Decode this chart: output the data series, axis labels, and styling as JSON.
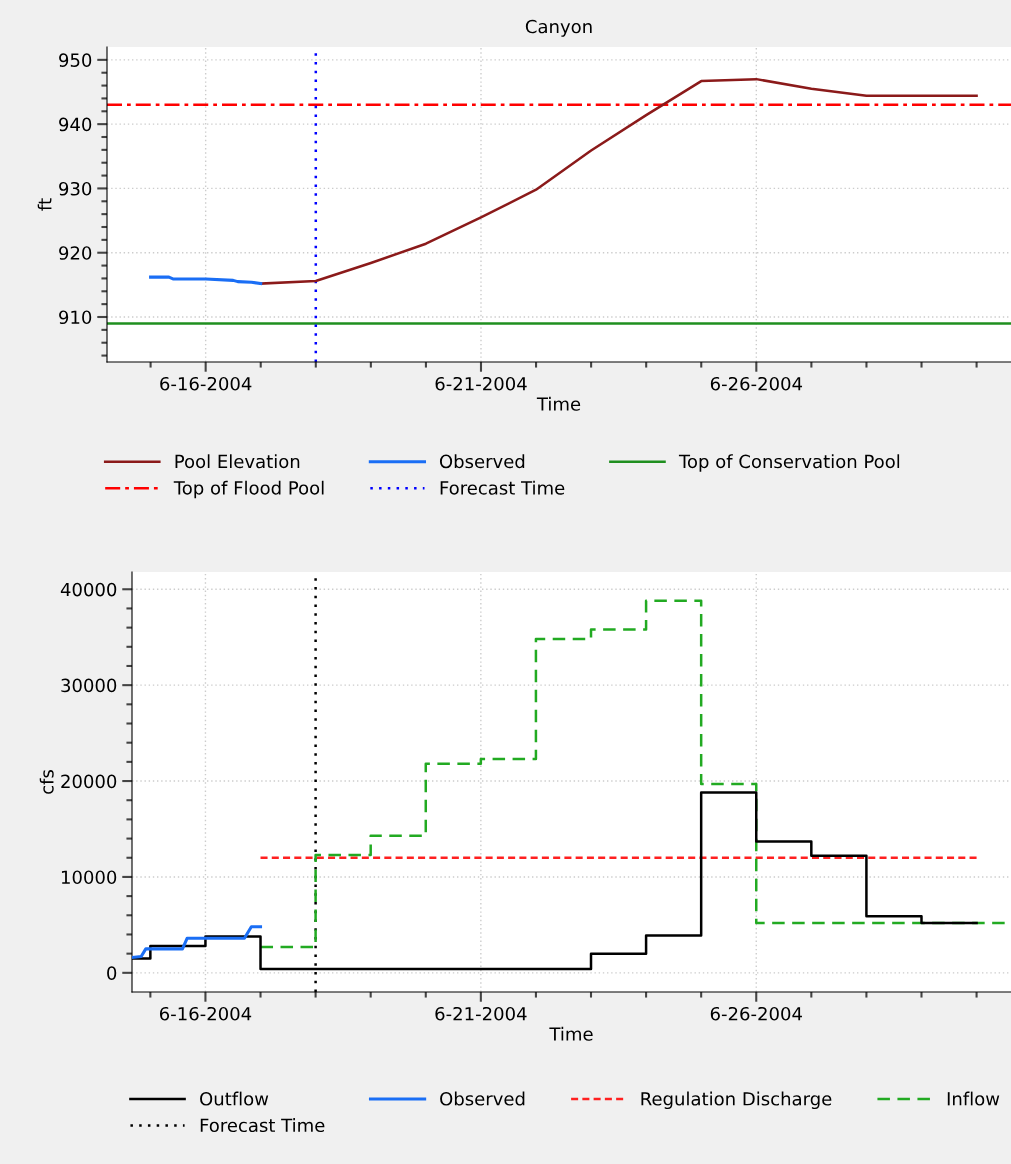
{
  "chart_data": [
    {
      "type": "line",
      "title": "Canyon",
      "xlabel": "Time",
      "ylabel": "ft",
      "xlim": [
        "2004-06-14T05:00",
        "2004-06-30T15:00"
      ],
      "xticks": [
        {
          "value": "2004-06-15",
          "label": null
        },
        {
          "value": "2004-06-16",
          "label": "6-16-2004"
        },
        {
          "value": "2004-06-17",
          "label": null
        },
        {
          "value": "2004-06-18",
          "label": null
        },
        {
          "value": "2004-06-19",
          "label": null
        },
        {
          "value": "2004-06-20",
          "label": null
        },
        {
          "value": "2004-06-21",
          "label": "6-21-2004"
        },
        {
          "value": "2004-06-22",
          "label": null
        },
        {
          "value": "2004-06-23",
          "label": null
        },
        {
          "value": "2004-06-24",
          "label": null
        },
        {
          "value": "2004-06-25",
          "label": null
        },
        {
          "value": "2004-06-26",
          "label": "6-26-2004"
        },
        {
          "value": "2004-06-27",
          "label": null
        },
        {
          "value": "2004-06-28",
          "label": null
        },
        {
          "value": "2004-06-29",
          "label": null
        },
        {
          "value": "2004-06-30",
          "label": null
        }
      ],
      "ylim": [
        903,
        952
      ],
      "yticks": [
        {
          "value": 904,
          "label": null
        },
        {
          "value": 906,
          "label": null
        },
        {
          "value": 908,
          "label": null
        },
        910,
        {
          "value": 912,
          "label": null
        },
        {
          "value": 914,
          "label": null
        },
        {
          "value": 916,
          "label": null
        },
        {
          "value": 918,
          "label": null
        },
        920,
        {
          "value": 922,
          "label": null
        },
        {
          "value": 924,
          "label": null
        },
        {
          "value": 926,
          "label": null
        },
        {
          "value": 928,
          "label": null
        },
        930,
        {
          "value": 932,
          "label": null
        },
        {
          "value": 934,
          "label": null
        },
        {
          "value": 936,
          "label": null
        },
        {
          "value": 938,
          "label": null
        },
        940,
        {
          "value": 942,
          "label": null
        },
        {
          "value": 944,
          "label": null
        },
        {
          "value": 946,
          "label": null
        },
        {
          "value": 948,
          "label": null
        },
        950
      ],
      "grid": true,
      "legend": "bottom",
      "series": [
        {
          "name": "Pool Elevation",
          "color": "#8b1a1a",
          "line_style": "solid",
          "x": [
            "2004-06-17",
            "2004-06-18",
            "2004-06-19",
            "2004-06-20",
            "2004-06-21",
            "2004-06-22",
            "2004-06-23",
            "2004-06-24",
            "2004-06-25",
            "2004-06-26",
            "2004-06-27",
            "2004-06-28",
            "2004-06-29",
            "2004-06-30"
          ],
          "values": [
            915.2,
            915.6,
            918.4,
            921.4,
            925.5,
            929.8,
            935.9,
            941.4,
            946.7,
            947.0,
            945.5,
            944.4,
            944.4,
            944.4
          ]
        },
        {
          "name": "Observed",
          "color": "#1a6ef5",
          "line_style": "solid",
          "x": [
            "2004-06-15",
            "2004-06-15T08:00",
            "2004-06-15T10:00",
            "2004-06-15T22:00",
            "2004-06-16",
            "2004-06-16T12:00",
            "2004-06-16T14:00",
            "2004-06-16T20:00",
            "2004-06-17"
          ],
          "values": [
            916.2,
            916.2,
            915.9,
            915.9,
            915.9,
            915.7,
            915.5,
            915.4,
            915.2
          ]
        }
      ],
      "ref_lines": [
        {
          "axis": "y",
          "value": 909,
          "label": "Top of Conservation Pool",
          "color": "#1f8f1f",
          "line_style": "solid"
        },
        {
          "axis": "y",
          "value": 943,
          "label": "Top of Flood Pool",
          "color": "#ff0000",
          "line_style": "dashdot"
        },
        {
          "axis": "x",
          "value": "2004-06-18",
          "label": "Forecast Time",
          "color": "#0000ff",
          "line_style": "dotted"
        }
      ]
    },
    {
      "type": "line",
      "xlabel": "Time",
      "ylabel": "cfs",
      "xlim": [
        "2004-06-14T16:00",
        "2004-06-30T15:00"
      ],
      "xticks": [
        {
          "value": "2004-06-15",
          "label": null
        },
        {
          "value": "2004-06-16",
          "label": "6-16-2004"
        },
        {
          "value": "2004-06-17",
          "label": null
        },
        {
          "value": "2004-06-18",
          "label": null
        },
        {
          "value": "2004-06-19",
          "label": null
        },
        {
          "value": "2004-06-20",
          "label": null
        },
        {
          "value": "2004-06-21",
          "label": "6-21-2004"
        },
        {
          "value": "2004-06-22",
          "label": null
        },
        {
          "value": "2004-06-23",
          "label": null
        },
        {
          "value": "2004-06-24",
          "label": null
        },
        {
          "value": "2004-06-25",
          "label": null
        },
        {
          "value": "2004-06-26",
          "label": "6-26-2004"
        },
        {
          "value": "2004-06-27",
          "label": null
        },
        {
          "value": "2004-06-28",
          "label": null
        },
        {
          "value": "2004-06-29",
          "label": null
        },
        {
          "value": "2004-06-30",
          "label": null
        }
      ],
      "ylim": [
        -2000,
        41800
      ],
      "yticks": [
        0,
        {
          "value": 2000,
          "label": null
        },
        {
          "value": 4000,
          "label": null
        },
        {
          "value": 6000,
          "label": null
        },
        {
          "value": 8000,
          "label": null
        },
        10000,
        {
          "value": 12000,
          "label": null
        },
        {
          "value": 14000,
          "label": null
        },
        {
          "value": 16000,
          "label": null
        },
        {
          "value": 18000,
          "label": null
        },
        20000,
        {
          "value": 22000,
          "label": null
        },
        {
          "value": 24000,
          "label": null
        },
        {
          "value": 26000,
          "label": null
        },
        {
          "value": 28000,
          "label": null
        },
        30000,
        {
          "value": 32000,
          "label": null
        },
        {
          "value": 34000,
          "label": null
        },
        {
          "value": 36000,
          "label": null
        },
        {
          "value": 38000,
          "label": null
        },
        40000
      ],
      "grid": true,
      "legend": "bottom",
      "series": [
        {
          "name": "Outflow",
          "type": "step",
          "color": "#000000",
          "line_style": "solid",
          "x": [
            "2004-06-14T16:00",
            "2004-06-15",
            "2004-06-16",
            "2004-06-17",
            "2004-06-23",
            "2004-06-24",
            "2004-06-25",
            "2004-06-26",
            "2004-06-27",
            "2004-06-28",
            "2004-06-29",
            "2004-06-30"
          ],
          "values": [
            1500,
            2800,
            3800,
            400,
            2000,
            3900,
            18800,
            13700,
            12200,
            5900,
            5200,
            5200
          ]
        },
        {
          "name": "Observed",
          "color": "#1a6ef5",
          "line_style": "solid",
          "x": [
            "2004-06-14T16:00",
            "2004-06-14T20:00",
            "2004-06-14T22:00",
            "2004-06-15T14:00",
            "2004-06-15T16:00",
            "2004-06-16T17:00",
            "2004-06-16T20:00",
            "2004-06-17"
          ],
          "values": [
            1600,
            1700,
            2500,
            2500,
            3600,
            3600,
            4800,
            4800
          ]
        },
        {
          "name": "Regulation Discharge",
          "color": "#ff2020",
          "line_style": "dashed",
          "x": [
            "2004-06-17",
            "2004-06-30"
          ],
          "values": [
            12000,
            12000
          ]
        },
        {
          "name": "Inflow",
          "type": "step",
          "color": "#22aa22",
          "line_style": "dashed",
          "x": [
            "2004-06-17",
            "2004-06-18",
            "2004-06-19",
            "2004-06-20",
            "2004-06-21",
            "2004-06-22",
            "2004-06-23",
            "2004-06-24",
            "2004-06-25",
            "2004-06-26",
            "2004-06-30T15:00"
          ],
          "values": [
            2700,
            12300,
            14300,
            21800,
            22300,
            34800,
            35800,
            38800,
            19700,
            5200,
            5200
          ]
        }
      ],
      "ref_lines": [
        {
          "axis": "x",
          "value": "2004-06-18",
          "label": "Forecast Time",
          "color": "#000000",
          "line_style": "dotted"
        }
      ]
    }
  ]
}
